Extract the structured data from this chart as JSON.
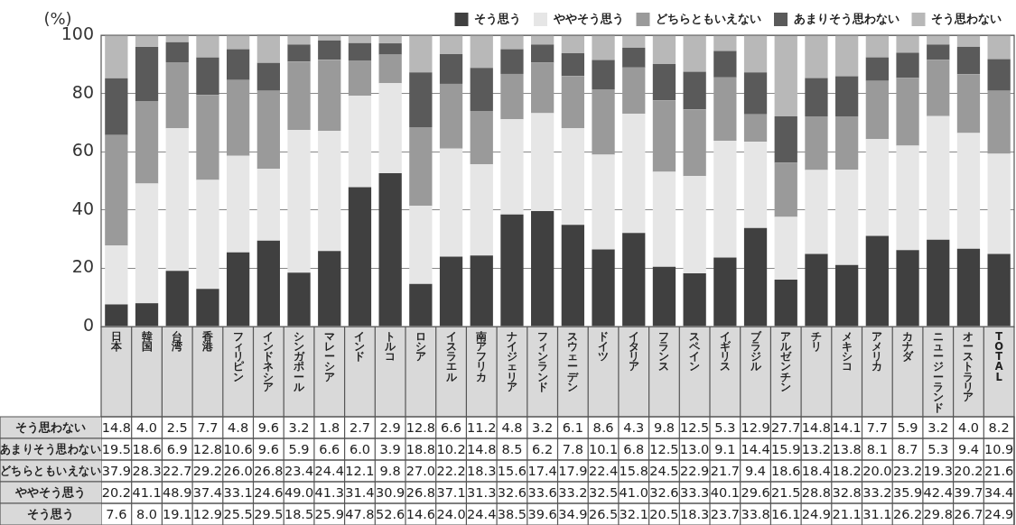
{
  "chart_data": {
    "type": "bar",
    "stacked": true,
    "ylabel": "(%)",
    "ylim": [
      0,
      100
    ],
    "yticks": [
      0,
      20,
      40,
      60,
      80,
      100
    ],
    "grid": "y",
    "legend": "top right",
    "categories": [
      "日本",
      "韓国",
      "台湾",
      "香港",
      "フィリピン",
      "インドネシア",
      "シンガポール",
      "マレーシア",
      "インド",
      "トルコ",
      "ロシア",
      "イスラエル",
      "南アフリカ",
      "ナイジェリア",
      "フィンランド",
      "スウェーデン",
      "ドイツ",
      "イタリア",
      "フランス",
      "スペイン",
      "イギリス",
      "ブラジル",
      "アルゼンチン",
      "チリ",
      "メキシコ",
      "アメリカ",
      "カナダ",
      "ニュージーランド",
      "オーストラリア",
      "TOTAL"
    ],
    "series": [
      {
        "name": "そう思う",
        "color": "#404040",
        "values": [
          7.6,
          8.0,
          19.1,
          12.9,
          25.5,
          29.5,
          18.5,
          25.9,
          47.8,
          52.6,
          14.6,
          24.0,
          24.4,
          38.5,
          39.6,
          34.9,
          26.5,
          32.1,
          20.5,
          18.3,
          23.7,
          33.8,
          16.1,
          24.9,
          21.1,
          31.1,
          26.2,
          29.8,
          26.7,
          24.9
        ],
        "value_labels": [
          "7.6",
          "8.0",
          "19.1",
          "12.9",
          "25.5",
          "29.5",
          "18.5",
          "25.9",
          "47.8",
          "52.6",
          "14.6",
          "24.0",
          "24.4",
          "38.5",
          "39.6",
          "34.9",
          "26.5",
          "32.1",
          "20.5",
          "18.3",
          "23.7",
          "33.8",
          "16.1",
          "24.9",
          "21.1",
          "31.1",
          "26.2",
          "29.8",
          "26.7",
          "24.9"
        ]
      },
      {
        "name": "ややそう思う",
        "color": "#e6e6e6",
        "values": [
          20.2,
          41.1,
          48.9,
          37.4,
          33.1,
          24.6,
          49.0,
          41.3,
          31.4,
          30.9,
          26.8,
          37.1,
          31.3,
          32.6,
          33.6,
          33.2,
          32.5,
          41.0,
          32.6,
          33.3,
          40.1,
          29.6,
          21.5,
          28.8,
          32.8,
          33.2,
          35.9,
          42.4,
          39.7,
          34.4
        ],
        "value_labels": [
          "20.2",
          "41.1",
          "48.9",
          "37.4",
          "33.1",
          "24.6",
          "49.0",
          "41.3",
          "31.4",
          "30.9",
          "26.8",
          "37.1",
          "31.3",
          "32.6",
          "33.6",
          "33.2",
          "32.5",
          "41.0",
          "32.6",
          "33.3",
          "40.1",
          "29.6",
          "21.5",
          "28.8",
          "32.8",
          "33.2",
          "35.9",
          "42.4",
          "39.7",
          "34.4"
        ]
      },
      {
        "name": "どちらともいえない",
        "color": "#9a9a9a",
        "values": [
          37.9,
          28.3,
          22.7,
          29.2,
          26.0,
          26.8,
          23.4,
          24.4,
          12.1,
          9.8,
          27.0,
          22.2,
          18.3,
          15.6,
          17.4,
          17.9,
          22.4,
          15.8,
          24.5,
          22.9,
          21.7,
          9.4,
          18.6,
          18.4,
          18.2,
          20.0,
          23.2,
          19.3,
          20.2,
          21.6
        ],
        "value_labels": [
          "37.9",
          "28.3",
          "22.7",
          "29.2",
          "26.0",
          "26.8",
          "23.4",
          "24.4",
          "12.1",
          "9.8",
          "27.0",
          "22.2",
          "18.3",
          "15.6",
          "17.4",
          "17.9",
          "22.4",
          "15.8",
          "24.5",
          "22.9",
          "21.7",
          "9.4",
          "18.6",
          "18.4",
          "18.2",
          "20.0",
          "23.2",
          "19.3",
          "20.2",
          "21.6"
        ]
      },
      {
        "name": "あまりそう思わない",
        "color": "#5a5a5a",
        "values": [
          19.5,
          18.6,
          6.9,
          12.8,
          10.6,
          9.6,
          5.9,
          6.6,
          6.0,
          3.9,
          18.8,
          10.2,
          14.8,
          8.5,
          6.2,
          7.8,
          10.1,
          6.8,
          12.5,
          13.0,
          9.1,
          14.4,
          15.9,
          13.2,
          13.8,
          8.1,
          8.7,
          5.3,
          9.4,
          10.9
        ],
        "value_labels": [
          "19.5",
          "18.6",
          "6.9",
          "12.8",
          "10.6",
          "9.6",
          "5.9",
          "6.6",
          "6.0",
          "3.9",
          "18.8",
          "10.2",
          "14.8",
          "8.5",
          "6.2",
          "7.8",
          "10.1",
          "6.8",
          "12.5",
          "13.0",
          "9.1",
          "14.4",
          "15.9",
          "13.2",
          "13.8",
          "8.1",
          "8.7",
          "5.3",
          "9.4",
          "10.9"
        ]
      },
      {
        "name": "そう思わない",
        "color": "#b8b8b8",
        "values": [
          14.8,
          4.0,
          2.5,
          7.7,
          4.8,
          9.6,
          3.2,
          1.8,
          2.7,
          2.9,
          12.8,
          6.6,
          11.2,
          4.8,
          3.2,
          6.1,
          8.6,
          4.3,
          9.8,
          12.5,
          5.3,
          12.9,
          27.7,
          14.8,
          14.1,
          7.7,
          5.9,
          3.2,
          4.0,
          8.2
        ],
        "value_labels": [
          "14.8",
          "4.0",
          "2.5",
          "7.7",
          "4.8",
          "9.6",
          "3.2",
          "1.8",
          "2.7",
          "2.9",
          "12.8",
          "6.6",
          "11.2",
          "4.8",
          "3.2",
          "6.1",
          "8.6",
          "4.3",
          "9.8",
          "12.5",
          "5.3",
          "12.9",
          "27.7",
          "14.8",
          "14.1",
          "7.7",
          "5.9",
          "3.2",
          "4.0",
          "8.2"
        ]
      }
    ]
  }
}
